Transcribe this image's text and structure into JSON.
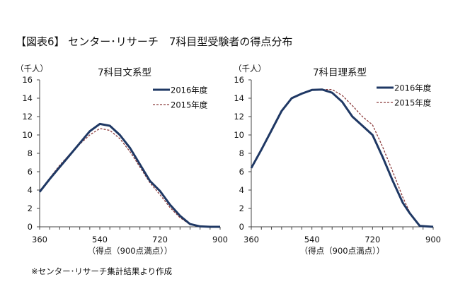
{
  "figure_title": "【図表6】 センター･リサーチ　7科目型受験者の得点分布",
  "source_note": "※センター･リサーチ集計結果より作成",
  "chart_data": [
    {
      "type": "line",
      "title": "7科目文系型",
      "ylabel": "（千人）",
      "xlabel": "（得点（900点満点））",
      "xlim": [
        360,
        900
      ],
      "ylim": [
        0,
        16
      ],
      "xticks": [
        360,
        540,
        720,
        900
      ],
      "yticks": [
        0,
        2,
        4,
        6,
        8,
        10,
        12,
        14,
        16
      ],
      "grid": false,
      "legend": "top-right",
      "series": [
        {
          "name": "2016年度",
          "color": "#1f3864",
          "style": "solid",
          "x": [
            360,
            390,
            420,
            450,
            480,
            510,
            540,
            570,
            600,
            630,
            660,
            690,
            720,
            750,
            780,
            810,
            840,
            870,
            900
          ],
          "y": [
            3.8,
            5.2,
            6.5,
            7.8,
            9.1,
            10.4,
            11.2,
            11.0,
            10.0,
            8.6,
            6.8,
            5.0,
            3.9,
            2.4,
            1.2,
            0.3,
            0.05,
            0,
            0
          ]
        },
        {
          "name": "2015年度",
          "color": "#8b3a3a",
          "style": "dashed",
          "x": [
            360,
            390,
            420,
            450,
            480,
            510,
            540,
            570,
            600,
            630,
            660,
            690,
            720,
            750,
            780,
            810,
            840,
            870,
            900
          ],
          "y": [
            3.8,
            5.3,
            6.7,
            7.9,
            9.0,
            10.0,
            10.7,
            10.5,
            9.6,
            8.2,
            6.5,
            4.8,
            3.5,
            2.1,
            1.0,
            0.25,
            0.03,
            0,
            0
          ]
        }
      ]
    },
    {
      "type": "line",
      "title": "7科目理系型",
      "ylabel": "（千人）",
      "xlabel": "（得点（900点満点））",
      "xlim": [
        360,
        900
      ],
      "ylim": [
        0,
        16
      ],
      "xticks": [
        360,
        540,
        720,
        900
      ],
      "yticks": [
        0,
        2,
        4,
        6,
        8,
        10,
        12,
        14,
        16
      ],
      "grid": false,
      "legend": "top-right",
      "series": [
        {
          "name": "2016年度",
          "color": "#1f3864",
          "style": "solid",
          "x": [
            360,
            390,
            420,
            450,
            480,
            510,
            540,
            570,
            600,
            630,
            660,
            690,
            720,
            750,
            780,
            810,
            830,
            860,
            900
          ],
          "y": [
            6.4,
            8.4,
            10.5,
            12.6,
            14.0,
            14.5,
            14.9,
            14.95,
            14.6,
            13.6,
            12.0,
            11.0,
            10.0,
            7.6,
            5.0,
            2.6,
            1.5,
            0.1,
            0
          ]
        },
        {
          "name": "2015年度",
          "color": "#8b3a3a",
          "style": "dashed",
          "x": [
            360,
            390,
            420,
            450,
            480,
            510,
            540,
            570,
            600,
            630,
            660,
            690,
            720,
            750,
            780,
            810,
            830,
            860,
            900
          ],
          "y": [
            6.4,
            8.4,
            10.5,
            12.6,
            14.0,
            14.5,
            14.9,
            14.95,
            14.95,
            14.3,
            13.2,
            12.0,
            11.1,
            8.7,
            6.0,
            3.2,
            1.6,
            0.1,
            0
          ]
        }
      ]
    }
  ]
}
